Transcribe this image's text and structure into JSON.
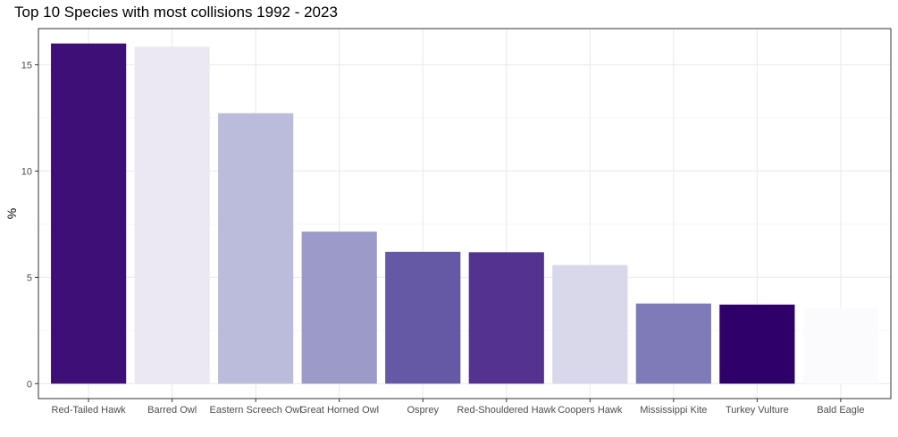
{
  "chart_data": {
    "type": "bar",
    "title": "Top 10 Species with most collisions 1992 - 2023",
    "xlabel": "",
    "ylabel": "%",
    "ylim": [
      -0.7,
      16.7
    ],
    "yticks": [
      0,
      5,
      10,
      15
    ],
    "grid": true,
    "legend": "none",
    "categories": [
      "Red-Tailed Hawk",
      "Barred Owl",
      "Eastern Screech Owl",
      "Great Horned Owl",
      "Osprey",
      "Red-Shouldered Hawk",
      "Coopers Hawk",
      "Mississippi Kite",
      "Turkey Vulture",
      "Bald Eagle"
    ],
    "values": [
      16.0,
      15.85,
      12.72,
      7.15,
      6.2,
      6.18,
      5.58,
      3.77,
      3.72,
      3.57
    ],
    "colors": [
      "#3f0f78",
      "#ebe8f3",
      "#bbbbdc",
      "#9c9ac8",
      "#6558a5",
      "#53338f",
      "#d9d8ea",
      "#7f7ab8",
      "#2f006a",
      "#fbfbfd"
    ]
  }
}
